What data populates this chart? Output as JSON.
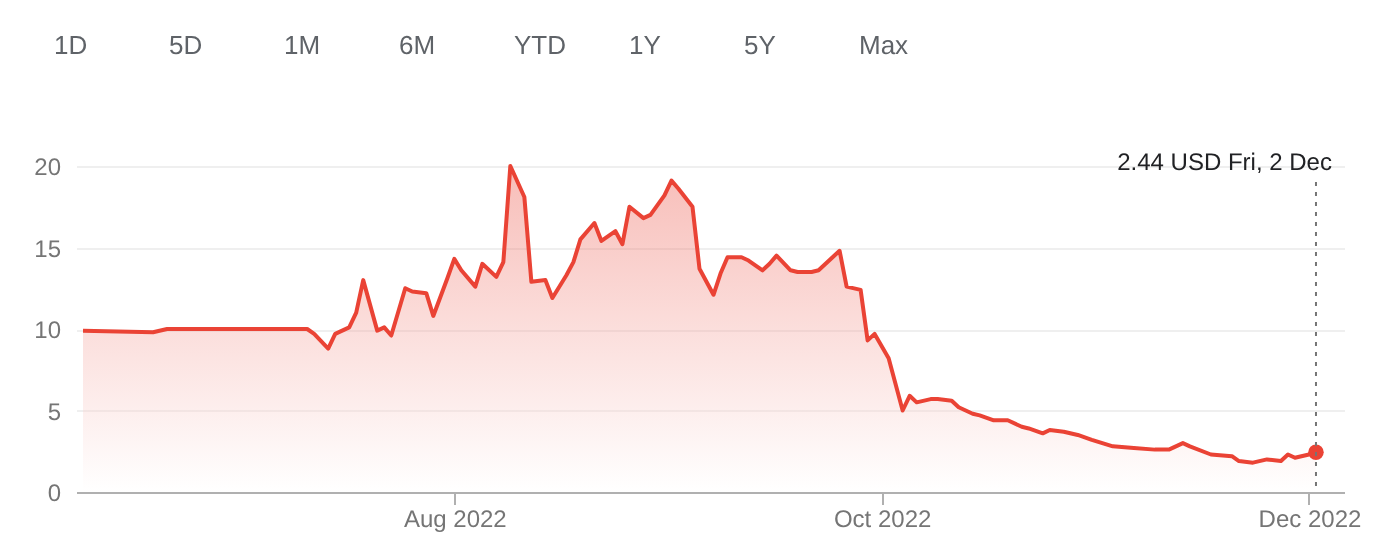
{
  "chart_data": {
    "type": "area",
    "x": [
      "2022-06-09",
      "2022-06-19",
      "2022-06-21",
      "2022-07-11",
      "2022-07-12",
      "2022-07-14",
      "2022-07-15",
      "2022-07-17",
      "2022-07-18",
      "2022-07-19",
      "2022-07-21",
      "2022-07-22",
      "2022-07-23",
      "2022-07-25",
      "2022-07-26",
      "2022-07-28",
      "2022-07-29",
      "2022-07-31",
      "2022-08-01",
      "2022-08-02",
      "2022-08-04",
      "2022-08-05",
      "2022-08-07",
      "2022-08-08",
      "2022-08-09",
      "2022-08-11",
      "2022-08-12",
      "2022-08-14",
      "2022-08-15",
      "2022-08-17",
      "2022-08-18",
      "2022-08-19",
      "2022-08-21",
      "2022-08-22",
      "2022-08-24",
      "2022-08-25",
      "2022-08-26",
      "2022-08-28",
      "2022-08-29",
      "2022-08-31",
      "2022-09-01",
      "2022-09-02",
      "2022-09-04",
      "2022-09-05",
      "2022-09-07",
      "2022-09-08",
      "2022-09-09",
      "2022-09-11",
      "2022-09-12",
      "2022-09-14",
      "2022-09-15",
      "2022-09-16",
      "2022-09-18",
      "2022-09-19",
      "2022-09-21",
      "2022-09-22",
      "2022-09-24",
      "2022-09-25",
      "2022-09-26",
      "2022-09-28",
      "2022-09-29",
      "2022-09-30",
      "2022-10-02",
      "2022-10-04",
      "2022-10-05",
      "2022-10-06",
      "2022-10-08",
      "2022-10-09",
      "2022-10-11",
      "2022-10-12",
      "2022-10-14",
      "2022-10-15",
      "2022-10-17",
      "2022-10-19",
      "2022-10-21",
      "2022-10-22",
      "2022-10-24",
      "2022-10-25",
      "2022-10-27",
      "2022-10-29",
      "2022-10-31",
      "2022-11-03",
      "2022-11-06",
      "2022-11-09",
      "2022-11-11",
      "2022-11-13",
      "2022-11-14",
      "2022-11-17",
      "2022-11-20",
      "2022-11-21",
      "2022-11-23",
      "2022-11-25",
      "2022-11-27",
      "2022-11-28",
      "2022-11-29",
      "2022-12-01",
      "2022-12-02"
    ],
    "series": [
      {
        "color": "#ea4335",
        "values": [
          9.9,
          9.8,
          10.0,
          10.0,
          9.7,
          8.8,
          9.7,
          10.1,
          11.0,
          13.0,
          9.9,
          10.1,
          9.6,
          12.5,
          12.3,
          12.2,
          10.8,
          13.1,
          14.3,
          13.6,
          12.6,
          14.0,
          13.2,
          14.1,
          20.0,
          18.1,
          12.9,
          13.0,
          11.9,
          13.3,
          14.1,
          15.5,
          16.5,
          15.4,
          16.0,
          15.2,
          17.5,
          16.8,
          17.0,
          18.2,
          19.1,
          18.6,
          17.5,
          13.7,
          12.1,
          13.4,
          14.4,
          14.4,
          14.2,
          13.6,
          14.0,
          14.5,
          13.6,
          13.5,
          13.5,
          13.6,
          14.4,
          14.8,
          12.6,
          12.4,
          9.3,
          9.7,
          8.2,
          5.0,
          5.9,
          5.5,
          5.7,
          5.7,
          5.6,
          5.2,
          4.8,
          4.7,
          4.4,
          4.4,
          4.0,
          3.9,
          3.6,
          3.8,
          3.7,
          3.5,
          3.2,
          2.8,
          2.7,
          2.6,
          2.6,
          3.0,
          2.8,
          2.3,
          2.2,
          1.9,
          1.8,
          2.0,
          1.9,
          2.3,
          2.1,
          2.3,
          2.44
        ]
      },
      {
        "type": "scatter",
        "color": "#ea4335",
        "x": [
          "2022-12-02"
        ],
        "values": [
          2.44
        ],
        "marker": "circle"
      }
    ],
    "xlim": [
      "2022-06-08",
      "2022-12-06"
    ],
    "xticks": [
      {
        "value": "2022-08-01",
        "label": "Aug 2022"
      },
      {
        "value": "2022-10-01",
        "label": "Oct 2022"
      },
      {
        "value": "2022-12-01",
        "label": "Dec 2022"
      }
    ],
    "ylim": [
      0,
      20
    ],
    "yticks": [
      0,
      5,
      10,
      15,
      20
    ],
    "grid": "y",
    "ref_lines": [
      {
        "axis": "x",
        "value": "2022-12-02",
        "color": "#757575",
        "line_style": "dotted",
        "label": "2.44 USD  Fri, 2 Dec"
      }
    ],
    "annotations": [
      "1D",
      "5D",
      "1M",
      "6M",
      "YTD",
      "1Y",
      "5Y",
      "Max"
    ]
  }
}
